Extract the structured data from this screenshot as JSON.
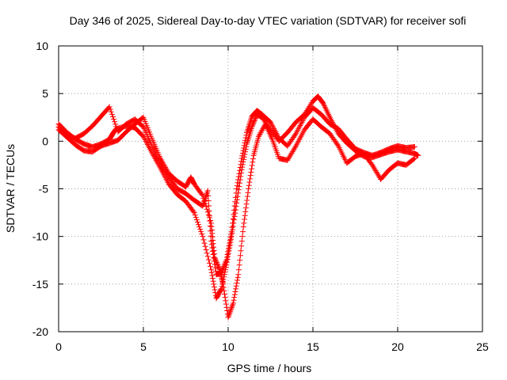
{
  "chart_data": {
    "type": "scatter",
    "title": "Day 346 of 2025, Sidereal Day-to-day VTEC variation (SDTVAR) for receiver sofi",
    "xlabel": "GPS time / hours",
    "ylabel": "SDTVAR / TECUs",
    "xlim": [
      0,
      25
    ],
    "ylim": [
      -20,
      10
    ],
    "xticks": [
      "0",
      "5",
      "10",
      "15",
      "20",
      "25"
    ],
    "yticks": [
      "10",
      "5",
      "0",
      "-5",
      "-10",
      "-15",
      "-20"
    ],
    "grid": true,
    "marker": "+",
    "color": "#ff0000",
    "series": [
      {
        "x": [
          0.0,
          0.5,
          1.0,
          1.5,
          2.0,
          2.5,
          3.0,
          3.2,
          3.4,
          4.0,
          4.5,
          5.0,
          5.5,
          6.0,
          6.5,
          7.0,
          7.5,
          8.0,
          8.5,
          9.0,
          9.3,
          9.6,
          9.9,
          10.2,
          10.5,
          10.8,
          11.1,
          11.4,
          11.7,
          12.0,
          12.5,
          13.0,
          13.5,
          14.0,
          14.5,
          15.0,
          15.3,
          15.6,
          16.0,
          16.5,
          17.0,
          17.5,
          18.0,
          18.5,
          19.0,
          19.5,
          20.0,
          20.5,
          21.0,
          21.2
        ],
        "y": [
          1.8,
          0.9,
          0.2,
          -0.3,
          -0.6,
          -0.3,
          0.2,
          0.8,
          1.3,
          1.6,
          1.4,
          0.5,
          -1.2,
          -2.8,
          -4.5,
          -5.6,
          -6.3,
          -7.5,
          -10.0,
          -13.5,
          -16.5,
          -15.5,
          -13.0,
          -10.0,
          -6.5,
          -3.0,
          -0.3,
          1.5,
          2.8,
          2.5,
          1.2,
          0.0,
          0.9,
          2.0,
          2.8,
          4.2,
          4.7,
          4.0,
          2.5,
          0.8,
          -0.2,
          -1.0,
          -1.6,
          -1.7,
          -1.4,
          -1.1,
          -0.9,
          -1.1,
          -1.3,
          -1.5
        ]
      },
      {
        "x": [
          0.0,
          0.5,
          1.0,
          1.5,
          2.0,
          2.5,
          3.0,
          3.5,
          4.0,
          4.5,
          5.0,
          5.5,
          6.0,
          6.5,
          7.0,
          7.5,
          8.0,
          8.5,
          8.8,
          9.0,
          9.3,
          9.6,
          9.9,
          10.2,
          10.5,
          10.8,
          11.1,
          11.4,
          11.7,
          12.0,
          12.5,
          13.0,
          13.5,
          14.0,
          14.5,
          15.0,
          15.5,
          16.0,
          16.5,
          17.0,
          17.5,
          18.0,
          18.5,
          19.0,
          19.5,
          20.0,
          20.5,
          21.0
        ],
        "y": [
          1.5,
          0.6,
          0.3,
          0.8,
          1.6,
          2.6,
          3.6,
          1.0,
          1.8,
          2.3,
          1.5,
          -0.5,
          -2.3,
          -3.8,
          -5.0,
          -5.5,
          -6.2,
          -6.8,
          -5.2,
          -10.5,
          -14.0,
          -13.8,
          -12.5,
          -9.5,
          -5.0,
          -1.8,
          0.9,
          2.6,
          3.2,
          2.8,
          2.0,
          0.3,
          -0.5,
          0.8,
          2.5,
          3.5,
          2.8,
          1.8,
          1.3,
          0.2,
          -0.8,
          -1.2,
          -1.5,
          -1.2,
          -0.8,
          -0.5,
          -0.7,
          -0.6
        ]
      },
      {
        "x": [
          0.0,
          0.5,
          1.0,
          1.5,
          2.0,
          2.5,
          3.0,
          3.5,
          4.0,
          4.5,
          5.0,
          5.5,
          6.0,
          6.5,
          7.0,
          7.5,
          7.8,
          8.0,
          8.5,
          9.0,
          9.2,
          9.5,
          9.7,
          10.0,
          10.3,
          10.6,
          10.9,
          11.2,
          11.5,
          11.8,
          12.2,
          12.6,
          13.0,
          13.5,
          14.0,
          14.5,
          15.0,
          15.5,
          16.0,
          16.5,
          17.0,
          17.5,
          18.0,
          18.5,
          19.0,
          19.5,
          20.0,
          20.5,
          21.0
        ],
        "y": [
          1.2,
          0.4,
          -0.4,
          -1.0,
          -1.1,
          -0.5,
          -0.2,
          0.1,
          1.0,
          1.8,
          2.5,
          0.3,
          -1.8,
          -3.4,
          -4.2,
          -4.8,
          -3.8,
          -4.5,
          -5.7,
          -8.6,
          -12.2,
          -13.5,
          -15.0,
          -18.5,
          -17.0,
          -14.0,
          -9.0,
          -5.0,
          -1.5,
          0.5,
          1.8,
          0.2,
          -1.8,
          -2.0,
          -0.5,
          1.2,
          2.3,
          1.5,
          0.8,
          -0.5,
          -2.3,
          -1.6,
          -1.3,
          -2.5,
          -4.0,
          -3.0,
          -2.3,
          -2.5,
          -1.8
        ]
      }
    ]
  }
}
